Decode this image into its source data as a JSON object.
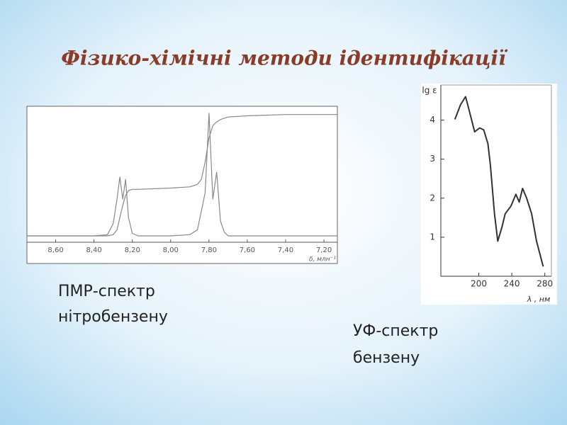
{
  "title": "Фізико-хімічні методи ідентифікації",
  "chart_data": [
    {
      "type": "line",
      "xlabel": "δ, млн⁻¹",
      "x": [
        8.75,
        8.4,
        8.33,
        8.3,
        8.28,
        8.265,
        8.25,
        8.235,
        8.22,
        8.2,
        8.17,
        8.0,
        7.9,
        7.86,
        7.84,
        7.82,
        7.8,
        7.78,
        7.76,
        7.74,
        7.72,
        7.7,
        7.6,
        7.4,
        7.13
      ],
      "series": [
        {
          "color": "#888888",
          "values": [
            0,
            0,
            0.01,
            0.1,
            0.3,
            0.48,
            0.3,
            0.46,
            0.15,
            0.02,
            0,
            0,
            0.01,
            0.05,
            0.2,
            0.35,
            1.0,
            0.3,
            0.52,
            0.12,
            0.03,
            0,
            0,
            0,
            0
          ]
        },
        {
          "color": "#888888",
          "values": [
            0,
            0,
            0,
            0.01,
            0.05,
            0.15,
            0.25,
            0.33,
            0.37,
            0.38,
            0.38,
            0.39,
            0.4,
            0.42,
            0.46,
            0.6,
            0.8,
            0.9,
            0.93,
            0.95,
            0.96,
            0.97,
            0.98,
            0.99,
            0.99
          ]
        }
      ],
      "xlim": [
        8.75,
        7.13
      ],
      "ylim": [
        0,
        1
      ],
      "xticks": [
        {
          "value": 8.6,
          "label": "8,60"
        },
        {
          "value": 8.4,
          "label": "8,40"
        },
        {
          "value": 8.2,
          "label": "8,20"
        },
        {
          "value": 8.0,
          "label": "8,00"
        },
        {
          "value": 7.8,
          "label": "7,80"
        },
        {
          "value": 7.6,
          "label": "7,60"
        },
        {
          "value": 7.4,
          "label": "7,40"
        },
        {
          "value": 7.2,
          "label": "7,20"
        }
      ]
    },
    {
      "type": "line",
      "xlabel": "λ , нм",
      "ylabel": "lg ε",
      "x": [
        171,
        178,
        184,
        189,
        195,
        201,
        206,
        211,
        214,
        219,
        223,
        228,
        232,
        239,
        245,
        249,
        253,
        258,
        264,
        270,
        278
      ],
      "series": [
        {
          "color": "#333333",
          "values": [
            4.02,
            4.4,
            4.6,
            4.2,
            3.7,
            3.8,
            3.75,
            3.4,
            2.85,
            1.6,
            0.9,
            1.25,
            1.6,
            1.8,
            2.1,
            1.9,
            2.25,
            2.0,
            1.6,
            0.9,
            0.25
          ]
        }
      ],
      "xlim": [
        154,
        288
      ],
      "ylim": [
        0,
        4.9
      ],
      "xticks": [
        200,
        240,
        280
      ],
      "yticks": [
        1,
        2,
        3,
        4
      ]
    }
  ],
  "captions": [
    {
      "lines": [
        "ПМР-спектр",
        "нітробензену"
      ]
    },
    {
      "lines": [
        "УФ-спектр",
        "бензену"
      ]
    }
  ]
}
